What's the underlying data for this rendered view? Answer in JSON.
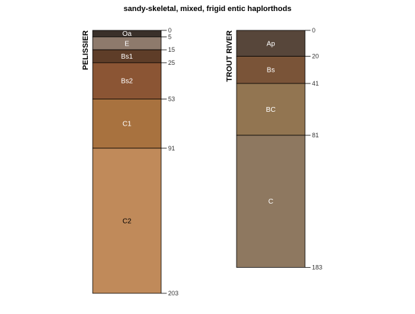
{
  "chart_data": {
    "type": "soil-profile",
    "title": "sandy-skeletal, mixed, frigid entic haplorthods",
    "profiles": [
      {
        "name": "PELISSIER",
        "bottom_depth": 203,
        "horizons": [
          {
            "name": "Oa",
            "top": 0,
            "bottom": 5,
            "color": "#3a302a",
            "label_color": "#ffffff"
          },
          {
            "name": "E",
            "top": 5,
            "bottom": 15,
            "color": "#8e7a6c",
            "label_color": "#ffffff"
          },
          {
            "name": "Bs1",
            "top": 15,
            "bottom": 25,
            "color": "#5e3d28",
            "label_color": "#ffffff"
          },
          {
            "name": "Bs2",
            "top": 25,
            "bottom": 53,
            "color": "#8b5534",
            "label_color": "#ffffff"
          },
          {
            "name": "C1",
            "top": 53,
            "bottom": 91,
            "color": "#a8723f",
            "label_color": "#ffffff"
          },
          {
            "name": "C2",
            "top": 91,
            "bottom": 203,
            "color": "#c08a5a",
            "label_color": "#000000"
          }
        ],
        "depth_labels": [
          "0",
          "5",
          "15",
          "25",
          "53",
          "91",
          "203"
        ]
      },
      {
        "name": "TROUT RIVER",
        "bottom_depth": 183,
        "horizons": [
          {
            "name": "Ap",
            "top": 0,
            "bottom": 20,
            "color": "#57463a",
            "label_color": "#ffffff"
          },
          {
            "name": "Bs",
            "top": 20,
            "bottom": 41,
            "color": "#7a5438",
            "label_color": "#ffffff"
          },
          {
            "name": "BC",
            "top": 41,
            "bottom": 81,
            "color": "#927551",
            "label_color": "#ffffff"
          },
          {
            "name": "C",
            "top": 81,
            "bottom": 183,
            "color": "#8e7860",
            "label_color": "#ffffff"
          }
        ],
        "depth_labels": [
          "0",
          "20",
          "41",
          "81",
          "183"
        ]
      }
    ]
  }
}
